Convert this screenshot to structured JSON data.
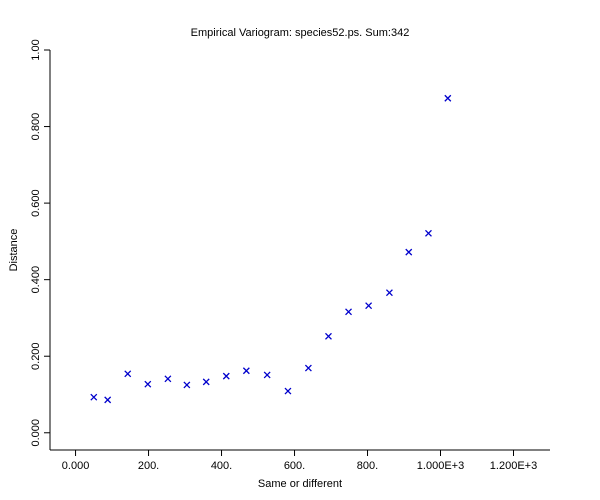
{
  "chart_data": {
    "type": "scatter",
    "title": "Empirical Variogram: species52.ps. Sum:342",
    "xlabel": "Same or different",
    "ylabel": "Distance",
    "xlim": [
      -70,
      1300
    ],
    "ylim": [
      -0.045,
      1.0
    ],
    "x_ticks": [
      0,
      200,
      400,
      600,
      800,
      1000,
      1200
    ],
    "x_tick_labels": [
      "0.000",
      "200.",
      "400.",
      "600.",
      "800.",
      "1.000E+3",
      "1.200E+3"
    ],
    "y_ticks": [
      0.0,
      0.2,
      0.4,
      0.6,
      0.8,
      1.0
    ],
    "y_tick_labels": [
      "0.000",
      "0.200",
      "0.400",
      "0.600",
      "0.800",
      "1.00"
    ],
    "grid": false,
    "marker": "x",
    "marker_color": "#0000cc",
    "points": [
      {
        "x": 50,
        "y": 0.093
      },
      {
        "x": 88,
        "y": 0.086
      },
      {
        "x": 143,
        "y": 0.154
      },
      {
        "x": 198,
        "y": 0.127
      },
      {
        "x": 253,
        "y": 0.141
      },
      {
        "x": 305,
        "y": 0.125
      },
      {
        "x": 358,
        "y": 0.133
      },
      {
        "x": 413,
        "y": 0.148
      },
      {
        "x": 468,
        "y": 0.162
      },
      {
        "x": 525,
        "y": 0.151
      },
      {
        "x": 582,
        "y": 0.109
      },
      {
        "x": 638,
        "y": 0.169
      },
      {
        "x": 693,
        "y": 0.252
      },
      {
        "x": 748,
        "y": 0.316
      },
      {
        "x": 803,
        "y": 0.332
      },
      {
        "x": 860,
        "y": 0.366
      },
      {
        "x": 913,
        "y": 0.472
      },
      {
        "x": 967,
        "y": 0.521
      },
      {
        "x": 1020,
        "y": 0.874
      }
    ]
  }
}
